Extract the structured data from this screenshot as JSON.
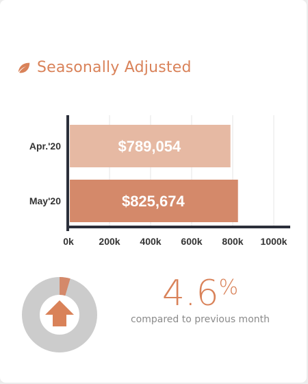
{
  "header": {
    "title": "Seasonally Adjusted",
    "icon": "leaf-icon"
  },
  "colors": {
    "accent": "#d98259",
    "bar_apr": "#e6b9a3",
    "bar_may": "#d4896a",
    "axis": "#2b2f3a",
    "grid": "#e6e6e6",
    "donut_track": "#cccccc",
    "donut_fill": "#d4896a"
  },
  "chart_data": {
    "type": "bar",
    "orientation": "horizontal",
    "categories": [
      "Apr.'20",
      "May'20"
    ],
    "values": [
      789054,
      825674
    ],
    "value_labels": [
      "$789,054",
      "$825,674"
    ],
    "xlim": [
      0,
      1000000
    ],
    "xticks": [
      0,
      200000,
      400000,
      600000,
      800000,
      1000000
    ],
    "xtick_labels": [
      "0k",
      "200k",
      "400k",
      "600k",
      "800k",
      "1000k"
    ],
    "grid": true
  },
  "summary": {
    "change_pct": 0.046,
    "pct_value": "4.6",
    "pct_symbol": "%",
    "compare_text": "compared to previous month",
    "arrow_icon": "arrow-up-icon"
  }
}
